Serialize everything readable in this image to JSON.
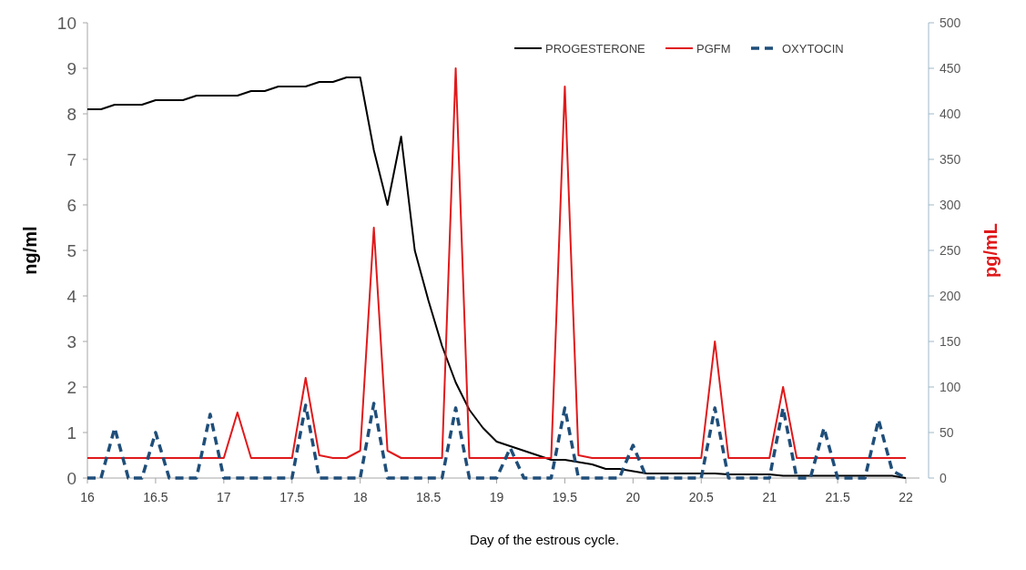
{
  "chart_data": {
    "type": "line",
    "xlabel": "Day of the estrous cycle.",
    "ylabel": "ng/ml",
    "y2label": "pg/mL",
    "x": [
      16,
      16.1,
      16.2,
      16.3,
      16.4,
      16.5,
      16.6,
      16.7,
      16.8,
      16.9,
      17,
      17.1,
      17.2,
      17.3,
      17.4,
      17.5,
      17.6,
      17.7,
      17.8,
      17.9,
      18,
      18.1,
      18.2,
      18.3,
      18.4,
      18.5,
      18.6,
      18.7,
      18.8,
      18.9,
      19,
      19.1,
      19.2,
      19.3,
      19.4,
      19.5,
      19.6,
      19.7,
      19.8,
      19.9,
      20,
      20.1,
      20.2,
      20.3,
      20.4,
      20.5,
      20.6,
      20.7,
      20.8,
      20.9,
      21,
      21.1,
      21.2,
      21.3,
      21.4,
      21.5,
      21.6,
      21.7,
      21.8,
      21.9,
      22
    ],
    "xlim": [
      16,
      22.1
    ],
    "xticks": [
      16,
      16.5,
      17,
      17.5,
      18,
      18.5,
      19,
      19.5,
      20,
      20.5,
      21,
      21.5,
      22
    ],
    "ylim": [
      0,
      10
    ],
    "yticks": [
      0,
      1,
      2,
      3,
      4,
      5,
      6,
      7,
      8,
      9,
      10
    ],
    "y2lim": [
      0,
      500
    ],
    "y2ticks": [
      0,
      50,
      100,
      150,
      200,
      250,
      300,
      350,
      400,
      450,
      500
    ],
    "legend": "top right",
    "grid": false,
    "series": [
      {
        "name": "PROGESTERONE",
        "color": "#000000",
        "line_style": "solid",
        "values": [
          8.1,
          8.1,
          8.2,
          8.2,
          8.2,
          8.3,
          8.3,
          8.3,
          8.4,
          8.4,
          8.4,
          8.4,
          8.5,
          8.5,
          8.6,
          8.6,
          8.6,
          8.7,
          8.7,
          8.8,
          8.8,
          7.2,
          6.0,
          7.5,
          5.0,
          3.9,
          2.9,
          2.1,
          1.5,
          1.1,
          0.8,
          0.7,
          0.6,
          0.5,
          0.4,
          0.4,
          0.35,
          0.3,
          0.2,
          0.2,
          0.15,
          0.1,
          0.1,
          0.1,
          0.1,
          0.1,
          0.1,
          0.08,
          0.08,
          0.08,
          0.08,
          0.05,
          0.05,
          0.05,
          0.05,
          0.05,
          0.05,
          0.05,
          0.05,
          0.05,
          0
        ]
      },
      {
        "name": "PGFM",
        "color": "#e0191b",
        "line_style": "solid",
        "axis": "y2",
        "values": [
          22,
          22,
          22,
          22,
          22,
          22,
          22,
          22,
          22,
          22,
          22,
          72,
          22,
          22,
          22,
          22,
          110,
          25,
          22,
          22,
          30,
          275,
          30,
          22,
          22,
          22,
          22,
          450,
          22,
          22,
          22,
          22,
          22,
          22,
          22,
          430,
          25,
          22,
          22,
          22,
          22,
          22,
          22,
          22,
          22,
          22,
          150,
          22,
          22,
          22,
          22,
          100,
          22,
          22,
          22,
          22,
          22,
          22,
          22,
          22,
          22
        ]
      },
      {
        "name": "OXYTOCIN",
        "color": "#1f4e79",
        "line_style": "dashed",
        "axis": "y2",
        "values": [
          0,
          0,
          55,
          0,
          0,
          50,
          0,
          0,
          0,
          70,
          0,
          0,
          0,
          0,
          0,
          0,
          80,
          0,
          0,
          0,
          0,
          82,
          0,
          0,
          0,
          0,
          0,
          77,
          0,
          0,
          0,
          33,
          0,
          0,
          0,
          77,
          0,
          0,
          0,
          0,
          36,
          0,
          0,
          0,
          0,
          0,
          77,
          0,
          0,
          0,
          0,
          77,
          0,
          0,
          55,
          0,
          0,
          0,
          64,
          8,
          0
        ]
      }
    ]
  }
}
